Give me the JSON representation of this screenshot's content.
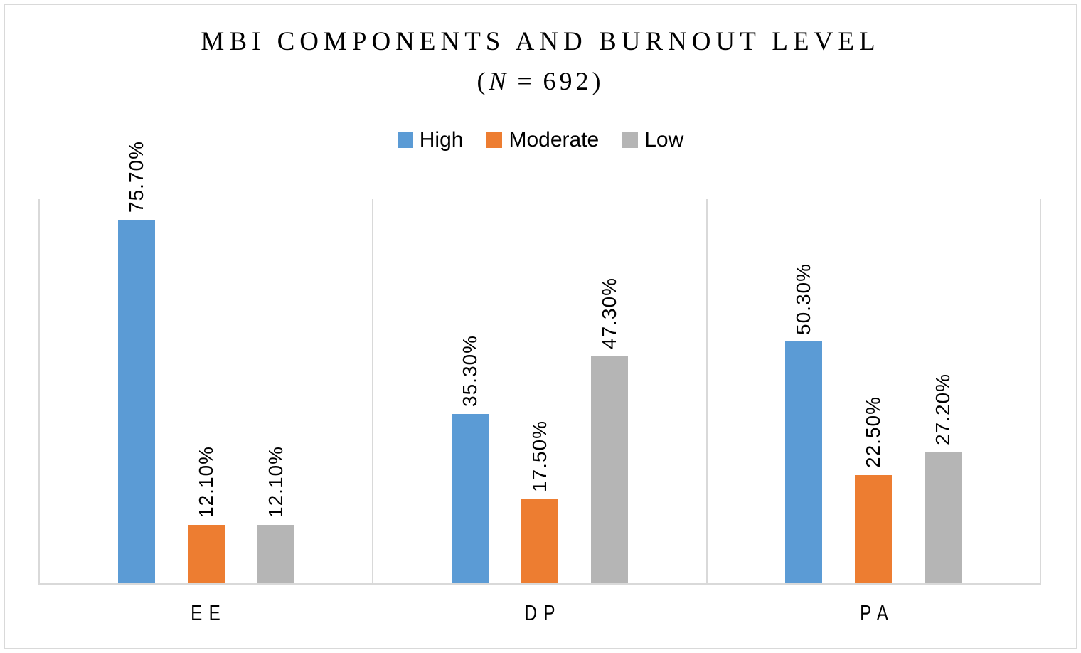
{
  "figure": {
    "title": "MBI COMPONENTS AND BURNOUT LEVEL",
    "subtitle": {
      "open": "(",
      "symbol": "N",
      "equals": "=",
      "value": "692",
      "close": ")"
    }
  },
  "chart_data": {
    "type": "bar",
    "title": "MBI COMPONENTS AND BURNOUT LEVEL",
    "subtitle": "(N = 692)",
    "sample_size_shown": "N = 692",
    "categories": [
      "EE",
      "DP",
      "PA"
    ],
    "series": [
      {
        "name": "High",
        "color": "#5B9BD5",
        "values": [
          75.7,
          35.3,
          50.3
        ],
        "data_labels": [
          "75.70%",
          "35.30%",
          "50.30%"
        ]
      },
      {
        "name": "Moderate",
        "color": "#ED7D31",
        "values": [
          12.1,
          17.5,
          22.5
        ],
        "data_labels": [
          "12.10%",
          "17.50%",
          "22.50%"
        ]
      },
      {
        "name": "Low",
        "color": "#B5B5B5",
        "values": [
          12.1,
          47.3,
          27.2
        ],
        "data_labels": [
          "12.10%",
          "47.30%",
          "27.20%"
        ]
      }
    ],
    "ylim": [
      0,
      80
    ],
    "xlabel": "",
    "ylabel": "",
    "y_axis_ticks_visible": false,
    "legend_position": "top",
    "data_label_format": "percent, 2 decimals",
    "data_label_rotation": 90,
    "grid": "vertical category separators and baseline only",
    "axis_line_color": "#D9D9D9",
    "text_color": "#000000",
    "background_color": "#FFFFFF"
  }
}
